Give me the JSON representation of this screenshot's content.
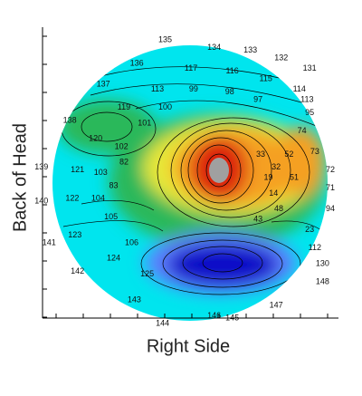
{
  "chart_data": {
    "type": "heatmap",
    "title": "",
    "xlabel": "Right Side",
    "ylabel": "Back of Head",
    "colormap": [
      "#00e5ee",
      "#29b85a",
      "#e8e838",
      "#f5a020",
      "#dc2010",
      "#1010c8",
      "#6080ff",
      "#a0a0a0"
    ],
    "annotations": [
      {
        "text": "135",
        "x": 0.43,
        "y": 0.97
      },
      {
        "text": "134",
        "x": 0.62,
        "y": 0.94
      },
      {
        "text": "133",
        "x": 0.76,
        "y": 0.93
      },
      {
        "text": "132",
        "x": 0.88,
        "y": 0.9
      },
      {
        "text": "131",
        "x": 0.99,
        "y": 0.86
      },
      {
        "text": "136",
        "x": 0.32,
        "y": 0.88
      },
      {
        "text": "117",
        "x": 0.53,
        "y": 0.86
      },
      {
        "text": "116",
        "x": 0.69,
        "y": 0.85
      },
      {
        "text": "115",
        "x": 0.82,
        "y": 0.82
      },
      {
        "text": "114",
        "x": 0.95,
        "y": 0.78
      },
      {
        "text": "137",
        "x": 0.19,
        "y": 0.8
      },
      {
        "text": "113",
        "x": 0.4,
        "y": 0.78
      },
      {
        "text": "99",
        "x": 0.54,
        "y": 0.78
      },
      {
        "text": "98",
        "x": 0.68,
        "y": 0.77
      },
      {
        "text": "97",
        "x": 0.79,
        "y": 0.74
      },
      {
        "text": "113",
        "x": 0.98,
        "y": 0.74
      },
      {
        "text": "119",
        "x": 0.27,
        "y": 0.71
      },
      {
        "text": "100",
        "x": 0.43,
        "y": 0.71
      },
      {
        "text": "95",
        "x": 0.99,
        "y": 0.69
      },
      {
        "text": "138",
        "x": 0.06,
        "y": 0.66
      },
      {
        "text": "101",
        "x": 0.35,
        "y": 0.65
      },
      {
        "text": "74",
        "x": 0.96,
        "y": 0.62
      },
      {
        "text": "120",
        "x": 0.16,
        "y": 0.59
      },
      {
        "text": "102",
        "x": 0.26,
        "y": 0.56
      },
      {
        "text": "73",
        "x": 1.01,
        "y": 0.54
      },
      {
        "text": "33",
        "x": 0.8,
        "y": 0.53
      },
      {
        "text": "52",
        "x": 0.91,
        "y": 0.53
      },
      {
        "text": "82",
        "x": 0.27,
        "y": 0.5
      },
      {
        "text": "32",
        "x": 0.86,
        "y": 0.48
      },
      {
        "text": "72",
        "x": 1.07,
        "y": 0.47
      },
      {
        "text": "139",
        "x": -0.05,
        "y": 0.48
      },
      {
        "text": "121",
        "x": 0.09,
        "y": 0.47
      },
      {
        "text": "103",
        "x": 0.18,
        "y": 0.46
      },
      {
        "text": "19",
        "x": 0.83,
        "y": 0.44
      },
      {
        "text": "51",
        "x": 0.93,
        "y": 0.44
      },
      {
        "text": "83",
        "x": 0.23,
        "y": 0.41
      },
      {
        "text": "71",
        "x": 1.07,
        "y": 0.4
      },
      {
        "text": "14",
        "x": 0.85,
        "y": 0.38
      },
      {
        "text": "140",
        "x": -0.05,
        "y": 0.35
      },
      {
        "text": "122",
        "x": 0.07,
        "y": 0.36
      },
      {
        "text": "104",
        "x": 0.17,
        "y": 0.36
      },
      {
        "text": "94",
        "x": 1.07,
        "y": 0.32
      },
      {
        "text": "105",
        "x": 0.22,
        "y": 0.29
      },
      {
        "text": "48",
        "x": 0.87,
        "y": 0.32
      },
      {
        "text": "43",
        "x": 0.79,
        "y": 0.28
      },
      {
        "text": "23",
        "x": 0.99,
        "y": 0.24
      },
      {
        "text": "123",
        "x": 0.08,
        "y": 0.22
      },
      {
        "text": "106",
        "x": 0.3,
        "y": 0.19
      },
      {
        "text": "141",
        "x": -0.02,
        "y": 0.19
      },
      {
        "text": "112",
        "x": 1.01,
        "y": 0.17
      },
      {
        "text": "124",
        "x": 0.23,
        "y": 0.13
      },
      {
        "text": "130",
        "x": 1.04,
        "y": 0.11
      },
      {
        "text": "142",
        "x": 0.09,
        "y": 0.08
      },
      {
        "text": "125",
        "x": 0.36,
        "y": 0.07
      },
      {
        "text": "148",
        "x": 1.04,
        "y": 0.04
      },
      {
        "text": "143",
        "x": 0.31,
        "y": -0.03
      },
      {
        "text": "147",
        "x": 0.86,
        "y": -0.05
      },
      {
        "text": "146",
        "x": 0.62,
        "y": -0.09
      },
      {
        "text": "145",
        "x": 0.69,
        "y": -0.1
      },
      {
        "text": "144",
        "x": 0.42,
        "y": -0.12
      }
    ]
  }
}
